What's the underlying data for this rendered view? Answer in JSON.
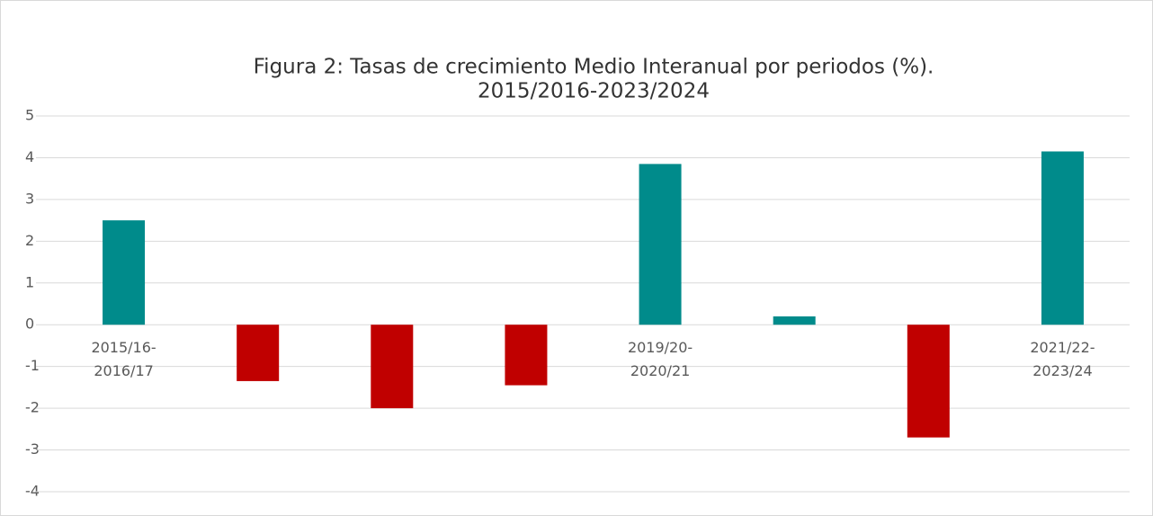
{
  "chart_data": {
    "type": "bar",
    "title": [
      "Figura 2: Tasas de crecimiento Medio Interanual por periodos (%).",
      "2015/2016-2023/2024"
    ],
    "categories": [
      "2015/16-2016/17",
      null,
      null,
      null,
      "2019/20-2020/21",
      null,
      null,
      "2021/22-2023/24"
    ],
    "values": [
      2.5,
      -1.35,
      -2.0,
      -1.45,
      3.85,
      0.2,
      -2.7,
      4.15
    ],
    "colors": [
      "#008b8b",
      "#c00000",
      "#c00000",
      "#c00000",
      "#008b8b",
      "#008b8b",
      "#c00000",
      "#008b8b"
    ],
    "ylim": [
      -4,
      5
    ],
    "yticks": [
      -4,
      -3,
      -2,
      -1,
      0,
      1,
      2,
      3,
      4,
      5
    ],
    "grid": true
  }
}
